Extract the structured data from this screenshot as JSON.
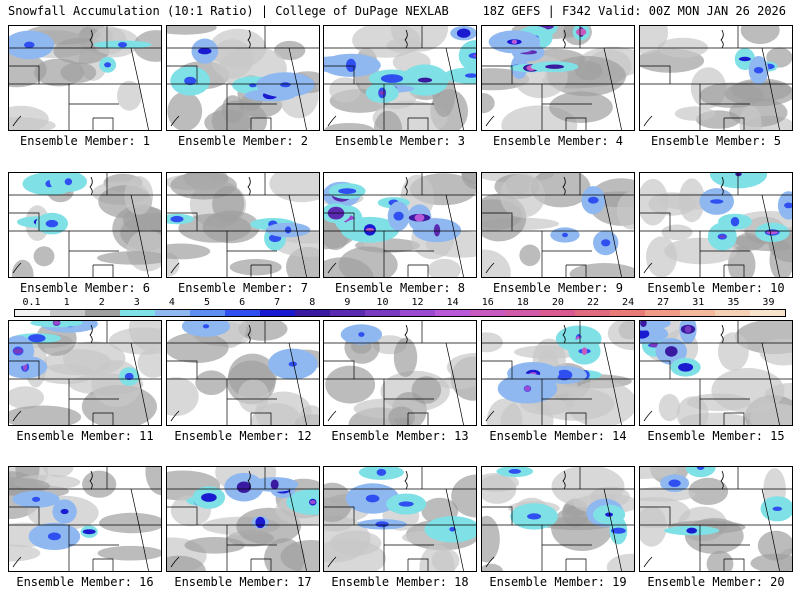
{
  "header": {
    "left": "Snowfall Accumulation (10:1 Ratio) | College of DuPage NEXLAB",
    "right": "18Z GEFS | F342 Valid: 00Z MON JAN 26 2026"
  },
  "colorbar": {
    "labels": [
      "0.1",
      "1",
      "2",
      "3",
      "4",
      "5",
      "6",
      "7",
      "8",
      "9",
      "10",
      "12",
      "14",
      "16",
      "18",
      "20",
      "22",
      "24",
      "27",
      "31",
      "35",
      "39"
    ],
    "colors": [
      "#f2f2f2",
      "#c8c8c8",
      "#a0a0a0",
      "#7fe0e6",
      "#8fb8f0",
      "#5c8ff0",
      "#2f4ff0",
      "#1a1ad0",
      "#3a1aa0",
      "#5a2ab0",
      "#7a3ac0",
      "#9a4ad0",
      "#b85ad8",
      "#c65ac0",
      "#d05aa8",
      "#d85a90",
      "#e06a80",
      "#e87a78",
      "#f09a88",
      "#f4b89c",
      "#f6d0b4",
      "#f8e4cc"
    ]
  },
  "members": [
    {
      "label": "Ensemble Member: 1",
      "intensity": 0.25
    },
    {
      "label": "Ensemble Member: 2",
      "intensity": 0.45
    },
    {
      "label": "Ensemble Member: 3",
      "intensity": 0.85
    },
    {
      "label": "Ensemble Member: 4",
      "intensity": 0.8
    },
    {
      "label": "Ensemble Member: 5",
      "intensity": 0.3
    },
    {
      "label": "Ensemble Member: 6",
      "intensity": 0.4
    },
    {
      "label": "Ensemble Member: 7",
      "intensity": 0.35
    },
    {
      "label": "Ensemble Member: 8",
      "intensity": 0.9
    },
    {
      "label": "Ensemble Member: 9",
      "intensity": 0.3
    },
    {
      "label": "Ensemble Member: 10",
      "intensity": 0.55
    },
    {
      "label": "Ensemble Member: 11",
      "intensity": 0.6
    },
    {
      "label": "Ensemble Member: 12",
      "intensity": 0.15
    },
    {
      "label": "Ensemble Member: 13",
      "intensity": 0.1
    },
    {
      "label": "Ensemble Member: 14",
      "intensity": 0.55
    },
    {
      "label": "Ensemble Member: 15",
      "intensity": 0.6
    },
    {
      "label": "Ensemble Member: 16",
      "intensity": 0.4
    },
    {
      "label": "Ensemble Member: 17",
      "intensity": 0.65
    },
    {
      "label": "Ensemble Member: 18",
      "intensity": 0.5
    },
    {
      "label": "Ensemble Member: 19",
      "intensity": 0.45
    },
    {
      "label": "Ensemble Member: 20",
      "intensity": 0.35
    }
  ]
}
